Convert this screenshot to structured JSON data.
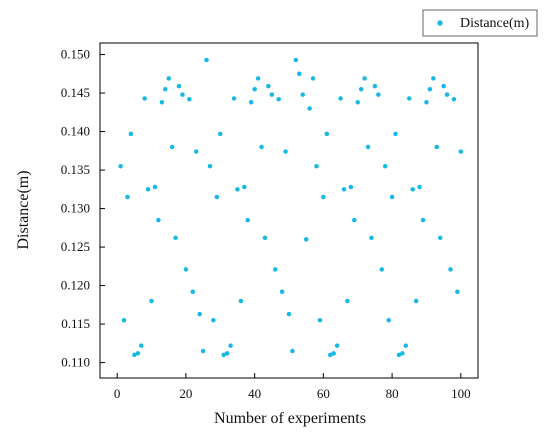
{
  "chart_data": {
    "type": "scatter",
    "title": "",
    "xlabel": "Number of experiments",
    "ylabel": "Distance(m)",
    "xlim": [
      -5,
      105
    ],
    "ylim": [
      0.108,
      0.1515
    ],
    "xticks": [
      "0",
      "20",
      "40",
      "60",
      "80",
      "100"
    ],
    "yticks": [
      "0.110",
      "0.115",
      "0.120",
      "0.125",
      "0.130",
      "0.135",
      "0.140",
      "0.145",
      "0.150"
    ],
    "xtick_values": [
      0,
      20,
      40,
      60,
      80,
      100
    ],
    "ytick_values": [
      0.11,
      0.115,
      0.12,
      0.125,
      0.13,
      0.135,
      0.14,
      0.145,
      0.15
    ],
    "grid": false,
    "legend": {
      "position": "top-right",
      "entries": [
        "Distance(m)"
      ]
    },
    "series": [
      {
        "name": "Distance(m)",
        "color": "#16b8e6",
        "x": [
          1,
          2,
          3,
          4,
          5,
          6,
          7,
          8,
          9,
          10,
          11,
          12,
          13,
          14,
          15,
          16,
          17,
          18,
          19,
          20,
          21,
          22,
          23,
          24,
          25,
          26,
          27,
          28,
          29,
          30,
          31,
          32,
          33,
          34,
          35,
          36,
          37,
          38,
          39,
          40,
          41,
          42,
          43,
          44,
          45,
          46,
          47,
          48,
          49,
          50,
          51,
          52,
          53,
          54,
          55,
          56,
          57,
          58,
          59,
          60,
          61,
          62,
          63,
          64,
          65,
          66,
          67,
          68,
          69,
          70,
          71,
          72,
          73,
          74,
          75,
          76,
          77,
          78,
          79,
          80,
          81,
          82,
          83,
          84,
          85,
          86,
          87,
          88,
          89,
          90,
          91,
          92,
          93,
          94,
          95,
          96,
          97,
          98,
          99,
          100
        ],
        "y": [
          0.1355,
          0.1155,
          0.1315,
          0.1397,
          0.111,
          0.1112,
          0.1122,
          0.1443,
          0.1325,
          0.118,
          0.1328,
          0.1285,
          0.1438,
          0.1455,
          0.1469,
          0.138,
          0.1262,
          0.1459,
          0.1448,
          0.1221,
          0.1442,
          0.1192,
          0.1374,
          0.1163,
          0.1115,
          0.1493,
          0.1355,
          0.1155,
          0.1315,
          0.1397,
          0.111,
          0.1112,
          0.1122,
          0.1443,
          0.1325,
          0.118,
          0.1328,
          0.1285,
          0.1438,
          0.1455,
          0.1469,
          0.138,
          0.1262,
          0.1459,
          0.1448,
          0.1221,
          0.1442,
          0.1192,
          0.1374,
          0.1163,
          0.1115,
          0.1493,
          0.1475,
          0.1448,
          0.126,
          0.143,
          0.1469,
          0.1355,
          0.1155,
          0.1315,
          0.1397,
          0.111,
          0.1112,
          0.1122,
          0.1443,
          0.1325,
          0.118,
          0.1328,
          0.1285,
          0.1438,
          0.1455,
          0.1469,
          0.138,
          0.1262,
          0.1459,
          0.1448,
          0.1221,
          0.1355,
          0.1155,
          0.1315,
          0.1397,
          0.111,
          0.1112,
          0.1122,
          0.1443,
          0.1325,
          0.118,
          0.1328,
          0.1285,
          0.1438,
          0.1455,
          0.1469,
          0.138,
          0.1262,
          0.1459,
          0.1448,
          0.1221,
          0.1442,
          0.1192,
          0.1374
        ]
      }
    ]
  }
}
